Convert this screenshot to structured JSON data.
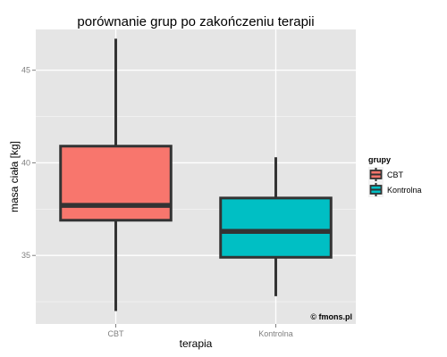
{
  "chart_data": {
    "type": "boxplot",
    "title": "porównanie grup po zakończeniu terapii",
    "xlabel": "terapia",
    "ylabel": "masa ciała [kg]",
    "categories": [
      "CBT",
      "Kontrolna"
    ],
    "ylim": [
      31.3,
      47.2
    ],
    "yticks": [
      35,
      40,
      45
    ],
    "ytick_labels": [
      "35",
      "40",
      "45"
    ],
    "grid": true,
    "boxes": [
      {
        "name": "CBT",
        "min": 32.0,
        "q1": 36.9,
        "median": 37.7,
        "q3": 40.9,
        "max": 46.7,
        "color": "#F8766D"
      },
      {
        "name": "Kontrolna",
        "min": 32.8,
        "q1": 34.9,
        "median": 36.3,
        "q3": 38.1,
        "max": 40.3,
        "color": "#00BFC4"
      }
    ],
    "legend": {
      "title": "grupy",
      "placement": "right",
      "entries": [
        {
          "label": "CBT",
          "color": "#F8766D"
        },
        {
          "label": "Kontrolna",
          "color": "#00BFC4"
        }
      ]
    },
    "watermark": "© fmons.pl",
    "panel_color": "#E5E5E5",
    "grid_color": "#FFFFFF",
    "stroke_color": "#333333"
  }
}
